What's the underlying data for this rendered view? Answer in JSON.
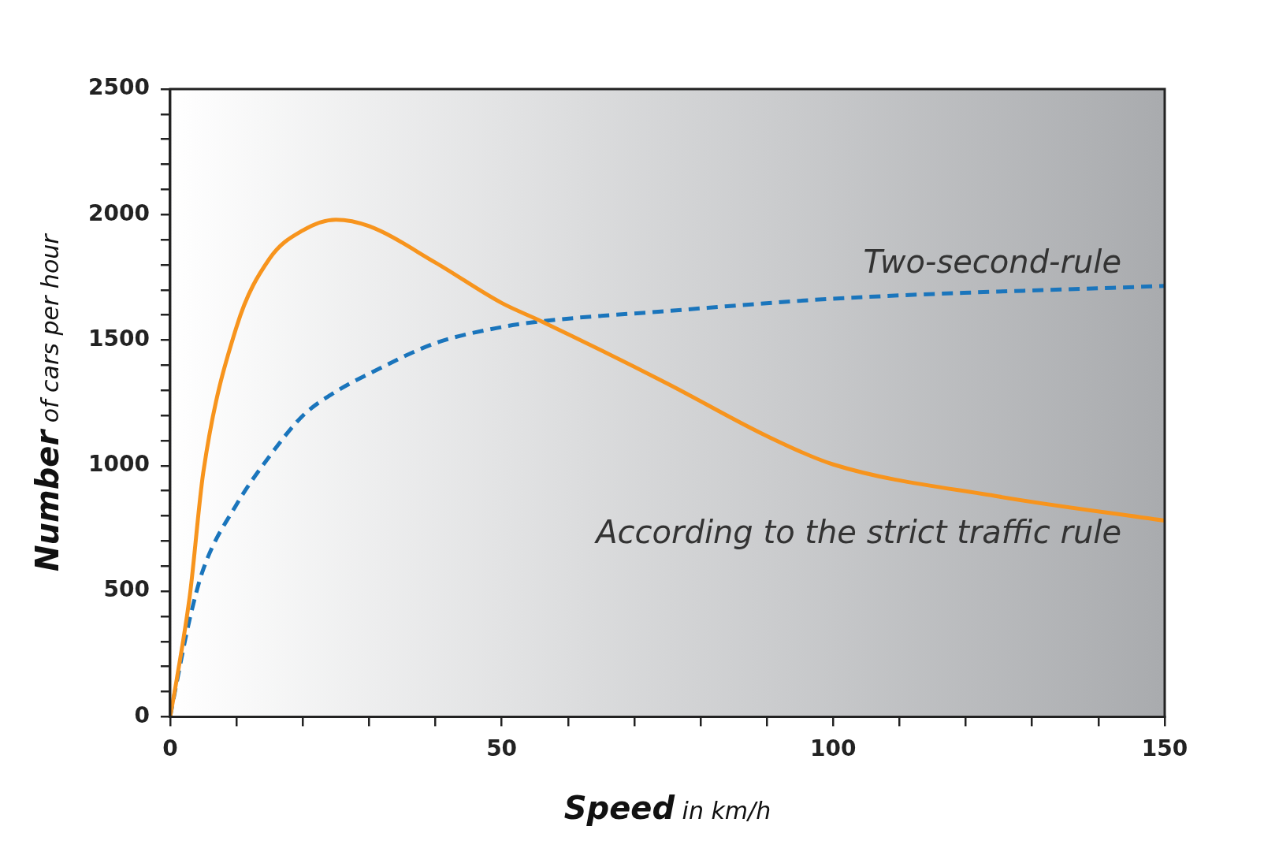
{
  "chart_data": {
    "type": "line",
    "xlabel": "Speed in km/h",
    "ylabel": "Number of cars per hour",
    "xlim": [
      0,
      150
    ],
    "ylim": [
      0,
      2500
    ],
    "xticks": [
      0,
      {
        "value": 10,
        "label": null
      },
      {
        "value": 20,
        "label": null
      },
      {
        "value": 30,
        "label": null
      },
      {
        "value": 40,
        "label": null
      },
      50,
      {
        "value": 60,
        "label": null
      },
      {
        "value": 70,
        "label": null
      },
      {
        "value": 80,
        "label": null
      },
      {
        "value": 90,
        "label": null
      },
      100,
      {
        "value": 110,
        "label": null
      },
      {
        "value": 120,
        "label": null
      },
      {
        "value": 130,
        "label": null
      },
      {
        "value": 140,
        "label": null
      },
      150
    ],
    "yticks": [
      0,
      {
        "value": 100,
        "label": null
      },
      {
        "value": 200,
        "label": null
      },
      {
        "value": 300,
        "label": null
      },
      {
        "value": 400,
        "label": null
      },
      500,
      {
        "value": 600,
        "label": null
      },
      {
        "value": 700,
        "label": null
      },
      {
        "value": 800,
        "label": null
      },
      {
        "value": 900,
        "label": null
      },
      1000,
      {
        "value": 1100,
        "label": null
      },
      {
        "value": 1200,
        "label": null
      },
      {
        "value": 1300,
        "label": null
      },
      {
        "value": 1400,
        "label": null
      },
      1500,
      {
        "value": 1600,
        "label": null
      },
      {
        "value": 1700,
        "label": null
      },
      {
        "value": 1800,
        "label": null
      },
      {
        "value": 1900,
        "label": null
      },
      2000,
      {
        "value": 2100,
        "label": null
      },
      {
        "value": 2200,
        "label": null
      },
      {
        "value": 2300,
        "label": null
      },
      {
        "value": 2400,
        "label": null
      },
      2500
    ],
    "grid": false,
    "legend": false,
    "marker": "none",
    "series": [
      {
        "color": "#f7941d",
        "line_style": "solid",
        "x": [
          0,
          1,
          3,
          5,
          10,
          15,
          20,
          25,
          30,
          40,
          50,
          56,
          75,
          90,
          100,
          125,
          150
        ],
        "values": [
          0,
          150,
          490,
          974,
          1552,
          1825,
          1937,
          1980,
          1954,
          1809,
          1648,
          1575,
          1327,
          1118,
          1005,
          877,
          781
        ]
      },
      {
        "color": "#1a75bc",
        "line_style": "dashed",
        "x": [
          0,
          1,
          3,
          5,
          10,
          15,
          20,
          25,
          30,
          40,
          50,
          56,
          75,
          100,
          150
        ],
        "values": [
          0,
          138,
          395,
          588,
          845,
          1038,
          1199,
          1295,
          1366,
          1488,
          1552,
          1575,
          1616,
          1665,
          1716
        ]
      }
    ],
    "annotations": [
      "Two-second-rule",
      "According to the strict traffic rule"
    ]
  }
}
